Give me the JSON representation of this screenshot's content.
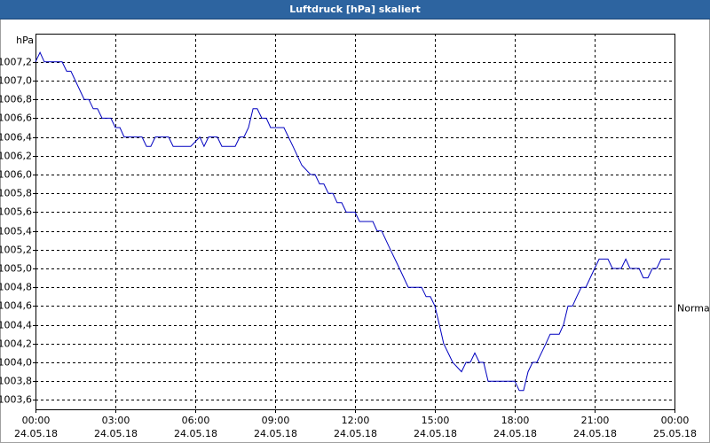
{
  "chart_data": {
    "type": "line",
    "title": "Luftdruck [hPa] skaliert",
    "y_label": "hPa",
    "annotation": {
      "value": 1004.6,
      "label": "Normal"
    },
    "xlim": [
      0,
      24
    ],
    "xticks": [
      {
        "value": 0,
        "label": "00:00",
        "sublabel": "24.05.18"
      },
      {
        "value": 3,
        "label": "03:00",
        "sublabel": "24.05.18"
      },
      {
        "value": 6,
        "label": "06:00",
        "sublabel": "24.05.18"
      },
      {
        "value": 9,
        "label": "09:00",
        "sublabel": "24.05.18"
      },
      {
        "value": 12,
        "label": "12:00",
        "sublabel": "24.05.18"
      },
      {
        "value": 15,
        "label": "15:00",
        "sublabel": "24.05.18"
      },
      {
        "value": 18,
        "label": "18:00",
        "sublabel": "24.05.18"
      },
      {
        "value": 21,
        "label": "21:00",
        "sublabel": "24.05.18"
      },
      {
        "value": 24,
        "label": "00:00",
        "sublabel": "25.05.18"
      }
    ],
    "ylim": [
      1003.5,
      1007.5
    ],
    "yticks": [
      {
        "value": 1003.6,
        "label": "1003,6"
      },
      {
        "value": 1003.8,
        "label": "1003,8"
      },
      {
        "value": 1004.0,
        "label": "1004,0"
      },
      {
        "value": 1004.2,
        "label": "1004,2"
      },
      {
        "value": 1004.4,
        "label": "1004,4"
      },
      {
        "value": 1004.6,
        "label": "1004,6"
      },
      {
        "value": 1004.8,
        "label": "1004,8"
      },
      {
        "value": 1005.0,
        "label": "1005,0"
      },
      {
        "value": 1005.2,
        "label": "1005,2"
      },
      {
        "value": 1005.4,
        "label": "1005,4"
      },
      {
        "value": 1005.6,
        "label": "1005,6"
      },
      {
        "value": 1005.8,
        "label": "1005,8"
      },
      {
        "value": 1006.0,
        "label": "1006,0"
      },
      {
        "value": 1006.2,
        "label": "1006,2"
      },
      {
        "value": 1006.4,
        "label": "1006,4"
      },
      {
        "value": 1006.6,
        "label": "1006,6"
      },
      {
        "value": 1006.8,
        "label": "1006,8"
      },
      {
        "value": 1007.0,
        "label": "1007,0"
      },
      {
        "value": 1007.2,
        "label": "1007,2"
      }
    ],
    "grid": true,
    "series": [
      {
        "color": "#0000c0",
        "x": [
          0,
          0.17,
          0.33,
          1,
          1.17,
          1.33,
          1.83,
          2,
          2.17,
          2.33,
          2.5,
          2.83,
          3,
          3.17,
          3.33,
          4,
          4.17,
          4.33,
          4.5,
          5,
          5.17,
          5.83,
          6.17,
          6.33,
          6.5,
          6.83,
          7,
          7.5,
          7.67,
          7.83,
          8,
          8.17,
          8.33,
          8.5,
          8.67,
          8.83,
          9.33,
          9.5,
          9.67,
          10,
          10.33,
          10.5,
          10.67,
          10.83,
          11,
          11.17,
          11.33,
          11.5,
          11.67,
          12,
          12.17,
          12.67,
          12.83,
          13,
          13.33,
          13.67,
          14,
          14.5,
          14.67,
          14.83,
          15,
          15.17,
          15.33,
          15.67,
          16,
          16.17,
          16.33,
          16.5,
          16.67,
          16.83,
          17,
          18,
          18.17,
          18.33,
          18.5,
          18.67,
          18.83,
          19.17,
          19.33,
          19.67,
          19.83,
          20,
          20.17,
          20.33,
          20.5,
          20.67,
          21,
          21.17,
          21.5,
          21.67,
          22,
          22.17,
          22.33,
          22.67,
          22.83,
          23,
          23.17,
          23.33,
          23.5,
          23.83
        ],
        "values": [
          1007.2,
          1007.3,
          1007.2,
          1007.2,
          1007.1,
          1007.1,
          1006.8,
          1006.8,
          1006.7,
          1006.7,
          1006.6,
          1006.6,
          1006.5,
          1006.5,
          1006.4,
          1006.4,
          1006.3,
          1006.3,
          1006.4,
          1006.4,
          1006.3,
          1006.3,
          1006.4,
          1006.3,
          1006.4,
          1006.4,
          1006.3,
          1006.3,
          1006.4,
          1006.4,
          1006.5,
          1006.7,
          1006.7,
          1006.6,
          1006.6,
          1006.5,
          1006.5,
          1006.4,
          1006.3,
          1006.1,
          1006.0,
          1006.0,
          1005.9,
          1005.9,
          1005.8,
          1005.8,
          1005.7,
          1005.7,
          1005.6,
          1005.6,
          1005.5,
          1005.5,
          1005.4,
          1005.4,
          1005.2,
          1005.0,
          1004.8,
          1004.8,
          1004.7,
          1004.7,
          1004.6,
          1004.4,
          1004.2,
          1004.0,
          1003.9,
          1004.0,
          1004.0,
          1004.1,
          1004.0,
          1004.0,
          1003.8,
          1003.8,
          1003.7,
          1003.7,
          1003.9,
          1004.0,
          1004.0,
          1004.2,
          1004.3,
          1004.3,
          1004.4,
          1004.6,
          1004.6,
          1004.7,
          1004.8,
          1004.8,
          1005.0,
          1005.1,
          1005.1,
          1005.0,
          1005.0,
          1005.1,
          1005.0,
          1005.0,
          1004.9,
          1004.9,
          1005.0,
          1005.0,
          1005.1,
          1005.1
        ]
      }
    ]
  }
}
